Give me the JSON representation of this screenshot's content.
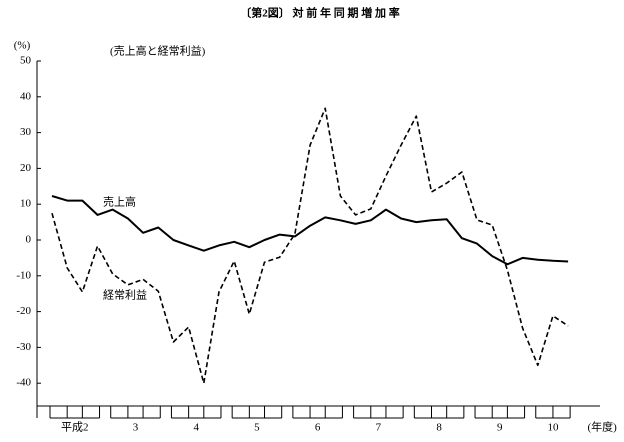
{
  "chart_data": {
    "type": "line",
    "title": "〔第2図〕 対 前 年 同 期 増 加 率",
    "subtitle": "(売上高と経常利益)",
    "y_label": "(%)",
    "x_unit": "(年度)",
    "x_groups": [
      "平成2",
      "3",
      "4",
      "5",
      "6",
      "7",
      "8",
      "9",
      "10"
    ],
    "categories": [
      null,
      null,
      null,
      null,
      null,
      null,
      null,
      null,
      null,
      null,
      null,
      null,
      null,
      null,
      null,
      null,
      null,
      null,
      null,
      null,
      null,
      null,
      null,
      null,
      null,
      null,
      null,
      null,
      null,
      null,
      null,
      null,
      null,
      null,
      null
    ],
    "series": [
      {
        "name": "売上高",
        "color": "#000000",
        "dash": false,
        "values": [
          12.3,
          11,
          11,
          7,
          8.5,
          6,
          2,
          3.5,
          0,
          -1.5,
          -3,
          -1.5,
          -0.5,
          -2,
          0,
          1.5,
          1,
          4,
          6.3,
          5.5,
          4.5,
          5.5,
          8.5,
          6,
          5,
          5.5,
          5.8,
          0.5,
          -1,
          -4.5,
          -6.8,
          -5,
          -5.5,
          -5.8,
          -6
        ]
      },
      {
        "name": "経常利益",
        "color": "#000000",
        "dash": true,
        "values": [
          7.5,
          -7.8,
          -14.5,
          -1.7,
          -9.5,
          -12.5,
          -11,
          -14.3,
          -28.5,
          -24.3,
          -40,
          -14.5,
          -5.9,
          -20.7,
          -6.2,
          -4.8,
          1.7,
          26.5,
          36.8,
          12.3,
          7,
          8.7,
          17.9,
          26.5,
          34.6,
          13.4,
          15.9,
          19,
          5.6,
          4.2,
          -8.4,
          -24.6,
          -35,
          -21.2,
          -24
        ]
      }
    ],
    "ylim": [
      -50,
      50
    ],
    "yticks": [
      -40,
      -30,
      -20,
      -10,
      0,
      10,
      20,
      30,
      40,
      50
    ],
    "grid": false
  }
}
